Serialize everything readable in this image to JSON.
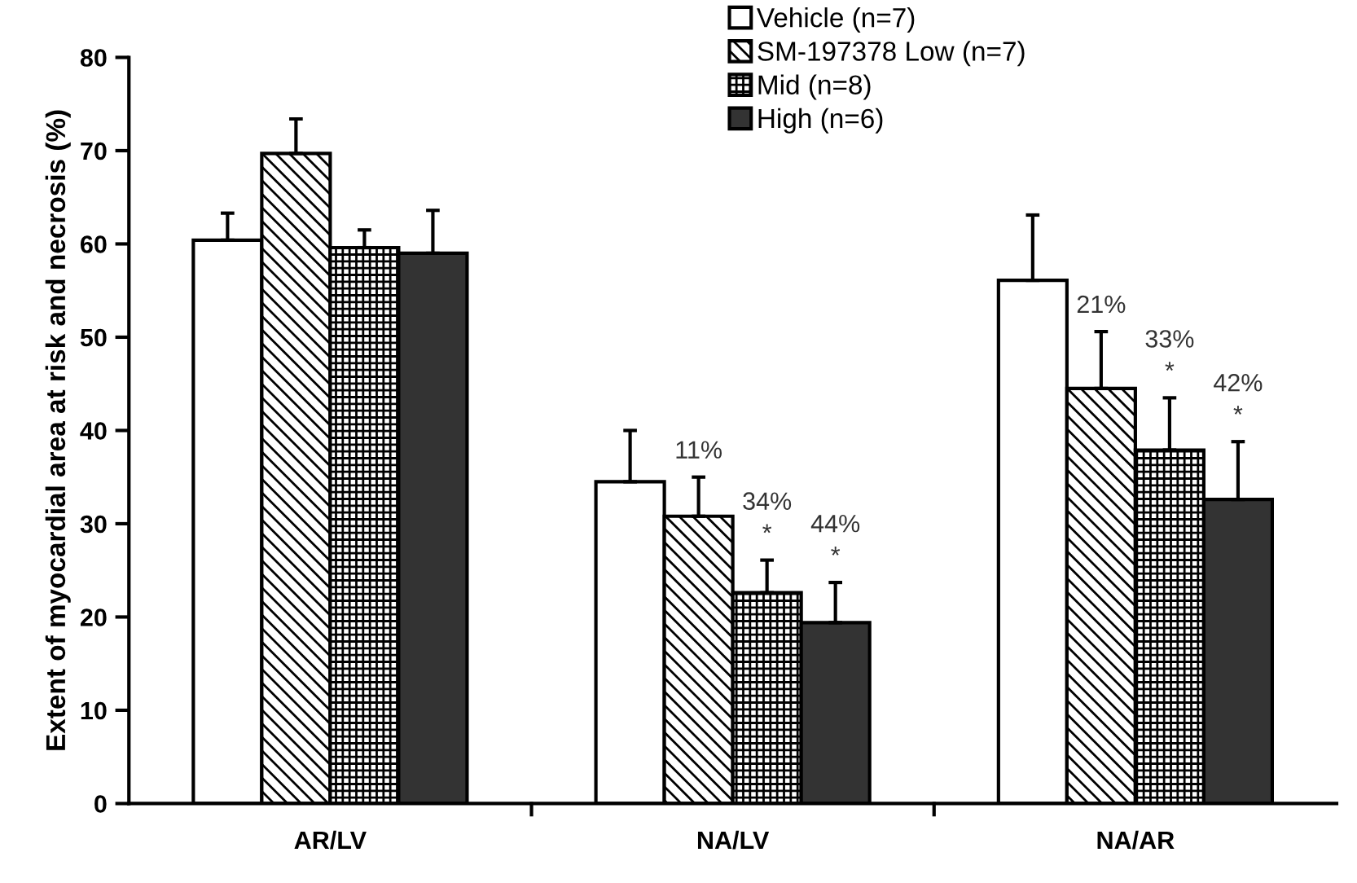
{
  "chart_data": {
    "type": "bar",
    "ylabel": "Extent of myocardial area at risk and necrosis (%)",
    "categories": [
      "AR/LV",
      "NA/LV",
      "NA/AR"
    ],
    "series": [
      {
        "name": "Vehicle (n=7)",
        "color": "#ffffff",
        "values": [
          60.4,
          34.5,
          56.1
        ],
        "errors": [
          [
            60.4,
            63.3
          ],
          [
            34.5,
            40.0
          ],
          [
            56.1,
            63.1
          ]
        ]
      },
      {
        "name": "SM-197378 Low (n=7)",
        "color": "#000000",
        "values": [
          69.7,
          30.8,
          44.5
        ],
        "errors": [
          [
            69.7,
            73.4
          ],
          [
            30.8,
            35.0
          ],
          [
            44.5,
            50.6
          ]
        ]
      },
      {
        "name": "Mid (n=8)",
        "color": "#000000",
        "values": [
          59.6,
          22.6,
          37.9
        ],
        "errors": [
          [
            59.6,
            61.5
          ],
          [
            22.6,
            26.1
          ],
          [
            37.9,
            43.5
          ]
        ]
      },
      {
        "name": "High (n=6)",
        "color": "#333333",
        "values": [
          59.0,
          19.4,
          32.6
        ],
        "errors": [
          [
            59.0,
            63.6
          ],
          [
            19.4,
            23.7
          ],
          [
            32.6,
            38.8
          ]
        ]
      }
    ],
    "value_labels": [
      [
        null,
        null,
        null
      ],
      [
        null,
        "11%",
        "21%"
      ],
      [
        null,
        "34%\n*",
        "33%\n*"
      ],
      [
        null,
        "44%\n*",
        "42%\n*"
      ]
    ],
    "ylim": [
      0,
      80
    ],
    "yticks": [
      0,
      10,
      20,
      30,
      40,
      50,
      60,
      70,
      80
    ],
    "grid": false,
    "legend": "top"
  }
}
